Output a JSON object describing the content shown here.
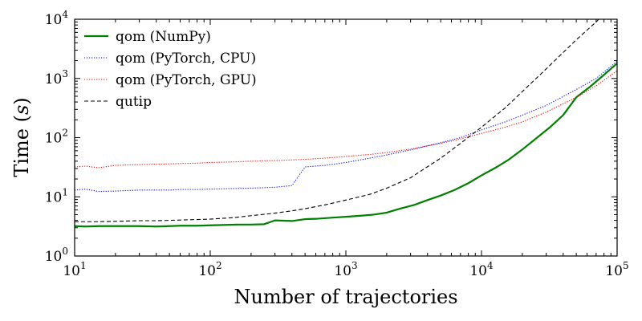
{
  "chart_data": {
    "type": "line",
    "title": "",
    "xlabel": "Number of trajectories",
    "ylabel_prefix": "Time (",
    "ylabel_var": "s",
    "ylabel_suffix": ")",
    "xscale": "log",
    "yscale": "log",
    "xlim": [
      10,
      100000
    ],
    "ylim": [
      1,
      10000
    ],
    "x_ticks": [
      {
        "base": "10",
        "exp": "1",
        "value": 10
      },
      {
        "base": "10",
        "exp": "2",
        "value": 100
      },
      {
        "base": "10",
        "exp": "3",
        "value": 1000
      },
      {
        "base": "10",
        "exp": "4",
        "value": 10000
      },
      {
        "base": "10",
        "exp": "5",
        "value": 100000
      }
    ],
    "y_ticks": [
      {
        "base": "10",
        "exp": "0",
        "value": 1
      },
      {
        "base": "10",
        "exp": "1",
        "value": 10
      },
      {
        "base": "10",
        "exp": "2",
        "value": 100
      },
      {
        "base": "10",
        "exp": "3",
        "value": 1000
      },
      {
        "base": "10",
        "exp": "4",
        "value": 10000
      }
    ],
    "grid": false,
    "legend_position": "top-left",
    "series": [
      {
        "name": "qom (NumPy)",
        "color": "#008000",
        "style": "solid",
        "x": [
          10,
          12,
          15,
          20,
          25,
          30,
          40,
          50,
          60,
          80,
          100,
          130,
          160,
          200,
          250,
          300,
          400,
          500,
          600,
          800,
          1000,
          1300,
          1600,
          2000,
          2500,
          3200,
          4000,
          5000,
          6300,
          8000,
          10000,
          13000,
          16000,
          20000,
          25000,
          32000,
          40000,
          50000,
          63000,
          80000,
          100000
        ],
        "y": [
          3.2,
          3.15,
          3.2,
          3.2,
          3.2,
          3.2,
          3.15,
          3.2,
          3.25,
          3.25,
          3.3,
          3.35,
          3.4,
          3.4,
          3.45,
          4.0,
          3.9,
          4.2,
          4.25,
          4.45,
          4.6,
          4.8,
          5.0,
          5.4,
          6.3,
          7.3,
          8.8,
          10.5,
          13.0,
          17.0,
          23.0,
          32.0,
          43.0,
          63.0,
          95.0,
          150.0,
          240.0,
          480.0,
          720.0,
          1150.0,
          1800.0
        ]
      },
      {
        "name": "qom (PyTorch, CPU)",
        "color": "#0000ff",
        "style": "dotted",
        "x": [
          10,
          12,
          15,
          20,
          30,
          40,
          50,
          60,
          80,
          100,
          150,
          200,
          300,
          400,
          500,
          700,
          1000,
          1500,
          2000,
          3000,
          5000,
          7000,
          10000,
          15000,
          20000,
          30000,
          50000,
          70000,
          100000
        ],
        "y": [
          13.0,
          13.5,
          12.3,
          12.5,
          13.0,
          13.0,
          13.0,
          13.3,
          13.3,
          13.5,
          13.8,
          14.0,
          14.5,
          15.5,
          32.0,
          34.0,
          38.0,
          45.0,
          51.0,
          62.0,
          82.0,
          100.0,
          135.0,
          185.0,
          240.0,
          350.0,
          650.0,
          1000.0,
          1950.0
        ]
      },
      {
        "name": "qom (PyTorch, GPU)",
        "color": "#ff0000",
        "style": "dotted",
        "x": [
          10,
          12,
          15,
          20,
          30,
          40,
          50,
          60,
          80,
          100,
          150,
          200,
          300,
          400,
          500,
          700,
          1000,
          1500,
          2000,
          3000,
          5000,
          7000,
          10000,
          15000,
          20000,
          30000,
          50000,
          70000,
          100000
        ],
        "y": [
          32.0,
          33.0,
          31.0,
          34.0,
          35.0,
          35.5,
          36.0,
          36.5,
          37.0,
          38.0,
          39.0,
          40.0,
          41.0,
          42.0,
          43.0,
          45.0,
          48.0,
          52.0,
          56.0,
          64.0,
          80.0,
          95.0,
          118.0,
          150.0,
          185.0,
          270.0,
          480.0,
          750.0,
          1350.0
        ]
      },
      {
        "name": "qutip",
        "color": "#000000",
        "style": "dashed",
        "x": [
          10,
          15,
          20,
          30,
          40,
          50,
          70,
          100,
          150,
          200,
          300,
          400,
          500,
          700,
          1000,
          1500,
          2000,
          3000,
          5000,
          7000,
          10000,
          15000,
          20000,
          30000,
          50000,
          70000,
          85000
        ],
        "y": [
          3.8,
          3.8,
          3.85,
          3.95,
          3.95,
          4.0,
          4.1,
          4.2,
          4.45,
          4.8,
          5.3,
          5.8,
          6.3,
          7.3,
          8.8,
          11.0,
          14.0,
          21.0,
          45.0,
          80.0,
          150.0,
          320.0,
          600.0,
          1450.0,
          4500.0,
          9000.0,
          14000.0
        ]
      }
    ]
  }
}
